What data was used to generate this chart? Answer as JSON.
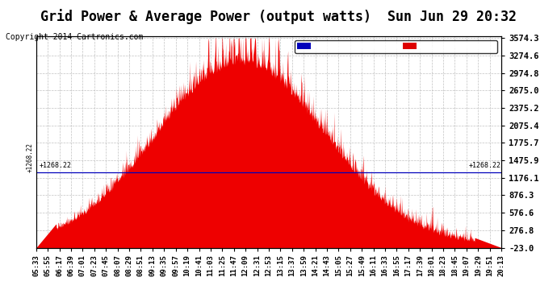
{
  "title": "Grid Power & Average Power (output watts)  Sun Jun 29 20:32",
  "copyright": "Copyright 2014 Cartronics.com",
  "yticks": [
    3574.3,
    3274.6,
    2974.8,
    2675.0,
    2375.2,
    2075.4,
    1775.7,
    1475.9,
    1176.1,
    876.3,
    576.6,
    276.8,
    -23.0
  ],
  "ymin": -23.0,
  "ymax": 3574.3,
  "avg_line": 1268.22,
  "xtick_labels": [
    "05:33",
    "05:55",
    "06:17",
    "06:39",
    "07:01",
    "07:23",
    "07:45",
    "08:07",
    "08:29",
    "08:51",
    "09:13",
    "09:35",
    "09:57",
    "10:19",
    "10:41",
    "11:03",
    "11:25",
    "11:47",
    "12:09",
    "12:31",
    "12:53",
    "13:15",
    "13:37",
    "13:59",
    "14:21",
    "14:43",
    "15:05",
    "15:27",
    "15:49",
    "16:11",
    "16:33",
    "16:55",
    "17:17",
    "17:39",
    "18:01",
    "18:23",
    "18:45",
    "19:07",
    "19:29",
    "19:51",
    "20:13"
  ],
  "legend_avg_color": "#0000bb",
  "legend_grid_color": "#dd0000",
  "fill_color": "#ee0000",
  "bg_color": "#ffffff",
  "plot_bg_color": "#ffffff",
  "grid_color": "#bbbbbb",
  "title_fontsize": 12,
  "copyright_fontsize": 7,
  "tick_label_fontsize": 6.5,
  "ytick_label_fontsize": 7.5
}
